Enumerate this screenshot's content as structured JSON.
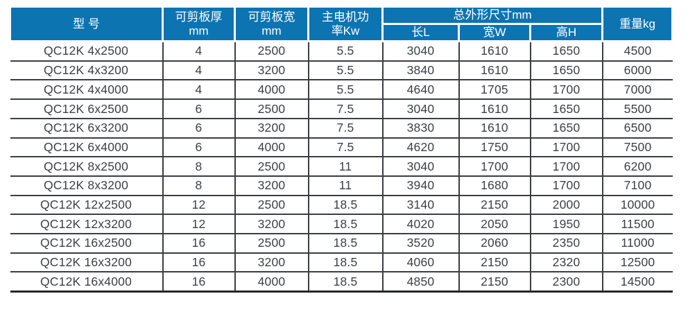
{
  "colors": {
    "header_bg": "#0d74b2",
    "header_text": "#ffffff",
    "body_text": "#3d4045",
    "grid_line": "#3a3d41",
    "bottom_border": "#23262a"
  },
  "table": {
    "headers": {
      "model": "型 号",
      "thickness": "可剪板厚\nmm",
      "width": "可剪板宽\nmm",
      "power": "主电机功\n率Kw",
      "dimensions_group": "总外形尺寸mm",
      "dim_length": "长L",
      "dim_width": "宽W",
      "dim_height": "高H",
      "weight": "重量kg"
    },
    "rows": [
      [
        "QC12K 4x2500",
        "4",
        "2500",
        "5.5",
        "3040",
        "1610",
        "1650",
        "4500"
      ],
      [
        "QC12K 4x3200",
        "4",
        "3200",
        "5.5",
        "3840",
        "1610",
        "1650",
        "6000"
      ],
      [
        "QC12K 4x4000",
        "4",
        "4000",
        "5.5",
        "4640",
        "1705",
        "1700",
        "7000"
      ],
      [
        "QC12K 6x2500",
        "6",
        "2500",
        "7.5",
        "3040",
        "1610",
        "1650",
        "5500"
      ],
      [
        "QC12K 6x3200",
        "6",
        "3200",
        "7.5",
        "3830",
        "1610",
        "1650",
        "6500"
      ],
      [
        "QC12K 6x4000",
        "6",
        "4000",
        "7.5",
        "4620",
        "1750",
        "1700",
        "7500"
      ],
      [
        "QC12K 8x2500",
        "8",
        "2500",
        "11",
        "3040",
        "1700",
        "1700",
        "6200"
      ],
      [
        "QC12K 8x3200",
        "8",
        "3200",
        "11",
        "3940",
        "1680",
        "1700",
        "7100"
      ],
      [
        "QC12K 12x2500",
        "12",
        "2500",
        "18.5",
        "3140",
        "2150",
        "2000",
        "10000"
      ],
      [
        "QC12K 12x3200",
        "12",
        "3200",
        "18.5",
        "4020",
        "2050",
        "1950",
        "11500"
      ],
      [
        "QC12K 16x2500",
        "16",
        "2500",
        "18.5",
        "3520",
        "2060",
        "2350",
        "11000"
      ],
      [
        "QC12K 16x3200",
        "16",
        "3200",
        "18.5",
        "4060",
        "2150",
        "2320",
        "12500"
      ],
      [
        "QC12K 16x4000",
        "16",
        "4000",
        "18.5",
        "4850",
        "2150",
        "2300",
        "14500"
      ]
    ]
  }
}
